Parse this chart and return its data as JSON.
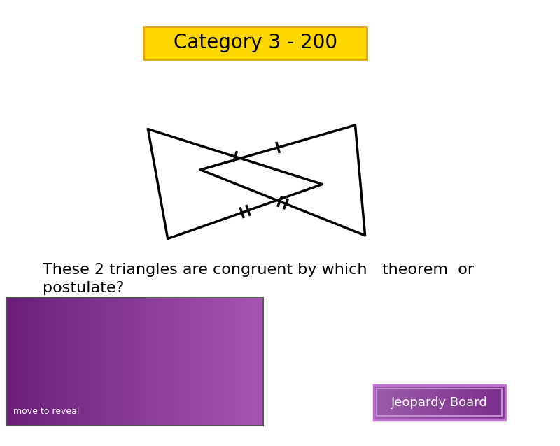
{
  "title": "Category 3 - 200",
  "title_bg": "#FFD700",
  "title_border": "#DAA520",
  "bg_color": "#FFFFFF",
  "question_line1": "These 2 triangles are congruent by which   theorem  or",
  "question_line2": "postulate?",
  "question_fontsize": 16,
  "reveal_box_color1": "#6B1F7A",
  "reveal_box_color2": "#A855B5",
  "reveal_text": "move to reveal",
  "jeopardy_btn_text": "Jeopardy Board",
  "jeopardy_btn_color": "#7B2D8B",
  "jeopardy_btn_border": "#C070D0"
}
